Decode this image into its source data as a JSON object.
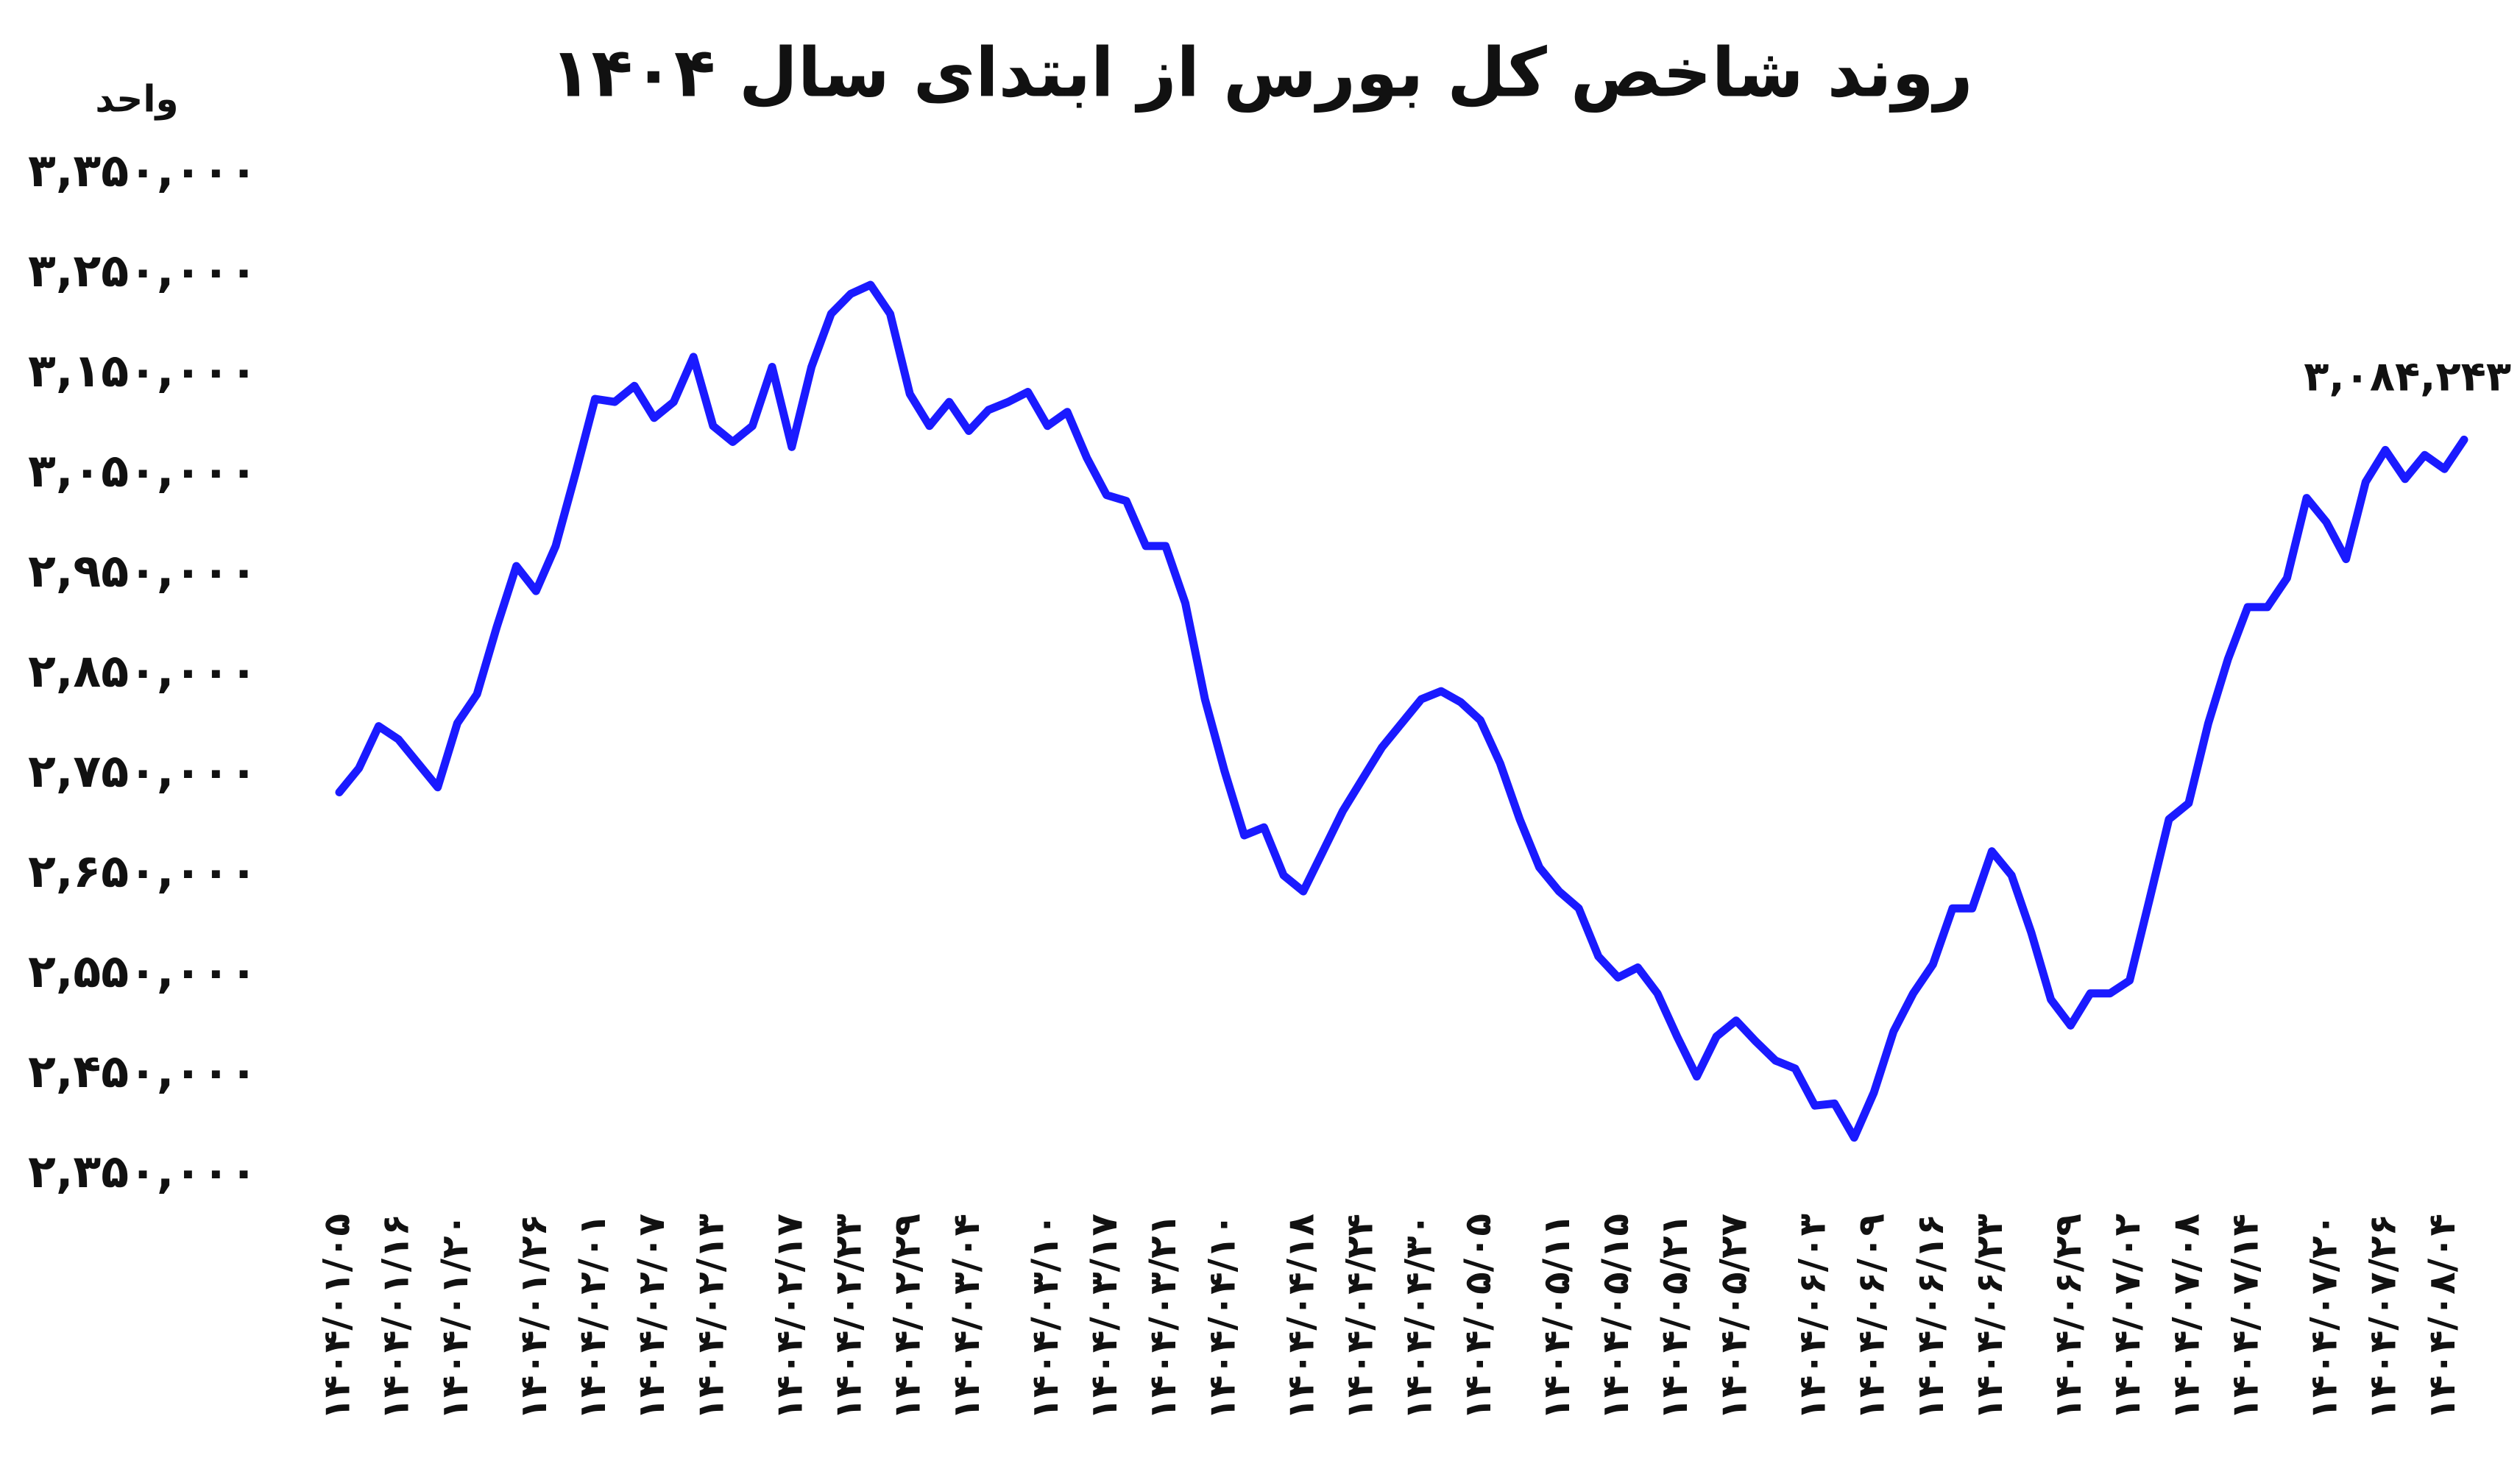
{
  "chart_data": {
    "type": "line",
    "title": "روند شاخص کل بورس از ابتدای سال ۱۴۰۴",
    "y_label": "واحد",
    "annotation": "۳,۰۸۴,۲۴۳",
    "ylim": [
      2350000,
      3350000
    ],
    "yticks": [
      {
        "value": 2350000,
        "label": "۲,۳۵۰,۰۰۰"
      },
      {
        "value": 2450000,
        "label": "۲,۴۵۰,۰۰۰"
      },
      {
        "value": 2550000,
        "label": "۲,۵۵۰,۰۰۰"
      },
      {
        "value": 2650000,
        "label": "۲,۶۵۰,۰۰۰"
      },
      {
        "value": 2750000,
        "label": "۲,۷۵۰,۰۰۰"
      },
      {
        "value": 2850000,
        "label": "۲,۸۵۰,۰۰۰"
      },
      {
        "value": 2950000,
        "label": "۲,۹۵۰,۰۰۰"
      },
      {
        "value": 3050000,
        "label": "۳,۰۵۰,۰۰۰"
      },
      {
        "value": 3150000,
        "label": "۳,۱۵۰,۰۰۰"
      },
      {
        "value": 3250000,
        "label": "۳,۲۵۰,۰۰۰"
      },
      {
        "value": 3350000,
        "label": "۳,۳۵۰,۰۰۰"
      }
    ],
    "grid": false,
    "categories": [
      "۱۴۰۴/۰۱/۰۵",
      null,
      null,
      "۱۴۰۴/۰۱/۱۶",
      null,
      null,
      "۱۴۰۴/۰۱/۲۰",
      null,
      null,
      null,
      "۱۴۰۴/۰۱/۲۶",
      null,
      null,
      "۱۴۰۴/۰۲/۰۱",
      null,
      null,
      "۱۴۰۴/۰۲/۰۷",
      null,
      null,
      "۱۴۰۴/۰۲/۱۳",
      null,
      null,
      null,
      "۱۴۰۴/۰۲/۱۷",
      null,
      null,
      "۱۴۰۴/۰۲/۲۳",
      null,
      null,
      "۱۴۰۴/۰۲/۲۹",
      null,
      null,
      "۱۴۰۴/۰۳/۰۴",
      null,
      null,
      null,
      "۱۴۰۴/۰۳/۱۰",
      null,
      null,
      "۱۴۰۴/۰۳/۱۷",
      null,
      null,
      "۱۴۰۴/۰۳/۲۱",
      null,
      null,
      "۱۴۰۴/۰۴/۱۰",
      null,
      null,
      null,
      "۱۴۰۴/۰۴/۱۸",
      null,
      null,
      "۱۴۰۴/۰۴/۲۴",
      null,
      null,
      "۱۴۰۴/۰۴/۳۰",
      null,
      null,
      "۱۴۰۴/۰۵/۰۵",
      null,
      null,
      null,
      "۱۴۰۴/۰۵/۱۱",
      null,
      null,
      "۱۴۰۴/۰۵/۱۵",
      null,
      null,
      "۱۴۰۴/۰۵/۲۱",
      null,
      null,
      "۱۴۰۴/۰۵/۲۷",
      null,
      null,
      null,
      "۱۴۰۴/۰۶/۰۳",
      null,
      null,
      "۱۴۰۴/۰۶/۰۹",
      null,
      null,
      "۱۴۰۴/۰۶/۱۶",
      null,
      null,
      "۱۴۰۴/۰۶/۲۳",
      null,
      null,
      null,
      "۱۴۰۴/۰۶/۲۹",
      null,
      null,
      "۱۴۰۴/۰۷/۰۲",
      null,
      null,
      "۱۴۰۴/۰۷/۰۸",
      null,
      null,
      "۱۴۰۴/۰۷/۱۴",
      null,
      null,
      null,
      "۱۴۰۴/۰۷/۲۰",
      null,
      null,
      "۱۴۰۴/۰۷/۲۶",
      null,
      null,
      "۱۴۰۴/۰۸/۰۴",
      null
    ],
    "series": [
      {
        "color": "#1a1aff",
        "values": [
          2732000,
          2756000,
          2798000,
          2785000,
          2761000,
          2737000,
          2801000,
          2830000,
          2897000,
          2958000,
          2933000,
          2978000,
          3050000,
          3125000,
          3122000,
          3138000,
          3106000,
          3122000,
          3167000,
          3098000,
          3082000,
          3098000,
          3157000,
          3077000,
          3157000,
          3210000,
          3230000,
          3239000,
          3210000,
          3130000,
          3098000,
          3122000,
          3093000,
          3114000,
          3122000,
          3132000,
          3098000,
          3112000,
          3066000,
          3029000,
          3023000,
          2978000,
          2978000,
          2921000,
          2825000,
          2753000,
          2689000,
          2697000,
          2649000,
          2633000,
          2673000,
          2713000,
          2745000,
          2777000,
          2801000,
          2825000,
          2833000,
          2822000,
          2804000,
          2761000,
          2705000,
          2657000,
          2633000,
          2616000,
          2568000,
          2547000,
          2557000,
          2531000,
          2488000,
          2448000,
          2488000,
          2504000,
          2483000,
          2464000,
          2456000,
          2419000,
          2421000,
          2387000,
          2432000,
          2493000,
          2531000,
          2560000,
          2616000,
          2616000,
          2673000,
          2649000,
          2592000,
          2525000,
          2499000,
          2531000,
          2531000,
          2544000,
          2624000,
          2705000,
          2721000,
          2801000,
          2865000,
          2917000,
          2917000,
          2946000,
          3026000,
          3002000,
          2965000,
          3042000,
          3074000,
          3045000,
          3069000,
          3055000,
          3084243
        ]
      }
    ]
  }
}
